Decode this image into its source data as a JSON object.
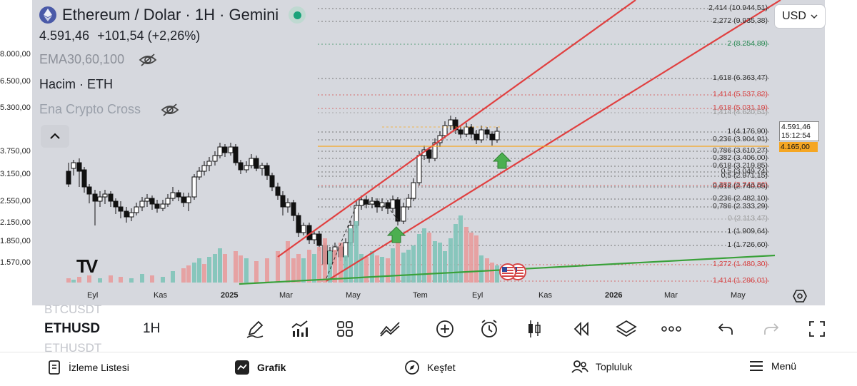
{
  "header": {
    "title": "Ethereum / Dolar · 1H · Gemini",
    "price": "4.591,46",
    "change": "+101,54 (+2,26%)",
    "ema_label": "EMA30,60,100",
    "volume_label": "Hacim · ETH",
    "indicator_label": "Ena Crypto Cross"
  },
  "currency": "USD",
  "watermark": "TV",
  "price_axis": [
    "8.000,00",
    "6.500,00",
    "5.300,00",
    "3.750,00",
    "3.150,00",
    "2.550,00",
    "2.150,00",
    "1.850,00",
    "1.570,00"
  ],
  "current_price": {
    "value": "4.591,46",
    "countdown": "15:12:54",
    "marker": "4.165,00"
  },
  "time_axis": [
    {
      "label": "Eyl",
      "bold": false
    },
    {
      "label": "Kas",
      "bold": false
    },
    {
      "label": "2025",
      "bold": true
    },
    {
      "label": "Mar",
      "bold": false
    },
    {
      "label": "May",
      "bold": false
    },
    {
      "label": "Tem",
      "bold": false
    },
    {
      "label": "Eyl",
      "bold": false
    },
    {
      "label": "Kas",
      "bold": false
    },
    {
      "label": "2026",
      "bold": true
    },
    {
      "label": "Mar",
      "bold": false
    },
    {
      "label": "May",
      "bold": false
    }
  ],
  "fib_levels": [
    {
      "text": "2,414 (10.944,51)",
      "color": "#333333"
    },
    {
      "text": "2,272 (9.935,38)",
      "color": "#333333"
    },
    {
      "text": "2 (8.254,89)",
      "color": "#2e8b57"
    },
    {
      "text": "1,618 (6.363,47)",
      "color": "#333333"
    },
    {
      "text": "1,414 (5.537,82)",
      "color": "#d64545"
    },
    {
      "text": "1,618 (5.031,19)",
      "color": "#d64545"
    },
    {
      "text": "1,414 (4.620,51)",
      "color": "#999999"
    },
    {
      "text": "1 (4.176,90)",
      "color": "#333333"
    },
    {
      "text": "0,236 (3.904,91)",
      "color": "#333333"
    },
    {
      "text": "0,786 (3.610,27)",
      "color": "#333333"
    },
    {
      "text": "0,382 (3.406,00)",
      "color": "#333333"
    },
    {
      "text": "0,618 (3.219,85)",
      "color": "#333333"
    },
    {
      "text": "0,5 (3.049,74)",
      "color": "#333333"
    },
    {
      "text": "0,5 (2.971,15)",
      "color": "#333333"
    },
    {
      "text": "0,382 (2.743,86)",
      "color": "#d64545"
    },
    {
      "text": "0,618 (2.740,05)",
      "color": "#333333"
    },
    {
      "text": "0,786 (2.333,29)",
      "color": "#333333"
    },
    {
      "text": "0,236 (2.482,10)",
      "color": "#333333"
    },
    {
      "text": "0 (2.113,47)",
      "color": "#999999"
    },
    {
      "text": "1 (1.909,64)",
      "color": "#333333"
    },
    {
      "text": "1 (1.726,60)",
      "color": "#333333"
    },
    {
      "text": "1,272 (1.480,30)",
      "color": "#d64545"
    },
    {
      "text": "1,414 (1.296,01)",
      "color": "#d64545"
    }
  ],
  "symbols": {
    "prev": "BTCUSDT",
    "current": "ETHUSD",
    "next": "ETHUSDT"
  },
  "timeframe": "1H",
  "toolbar_icons": [
    "pen-icon",
    "indicators-icon",
    "templates-icon",
    "compare-icon",
    "add-icon",
    "alert-icon",
    "replay-candle-icon",
    "rewind-icon",
    "layers-icon",
    "more-icon",
    "undo-icon",
    "redo-icon",
    "fullscreen-icon"
  ],
  "nav": {
    "watchlist": "İzleme Listesi",
    "chart": "Grafik",
    "explore": "Keşfet",
    "community": "Topluluk",
    "menu": "Menü"
  }
}
